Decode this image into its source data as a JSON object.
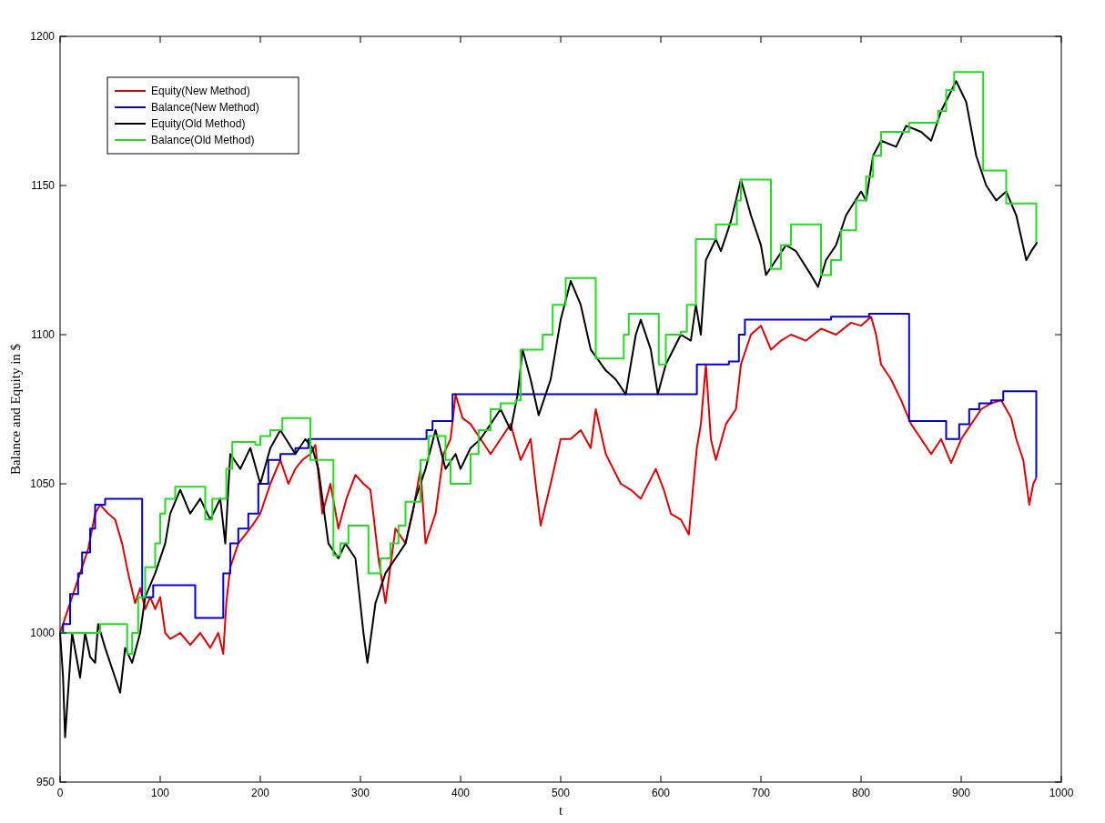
{
  "chart_data": {
    "type": "line",
    "xlabel": "t",
    "ylabel": "Balance and Equity in $",
    "xlim": [
      0,
      1000
    ],
    "ylim": [
      950,
      1200
    ],
    "xticks": [
      0,
      100,
      200,
      300,
      400,
      500,
      600,
      700,
      800,
      900,
      1000
    ],
    "yticks": [
      950,
      1000,
      1050,
      1100,
      1150,
      1200
    ],
    "grid": false,
    "legend": "top left",
    "line_style": "solid",
    "marker": "none",
    "series": [
      {
        "name": "Equity(New Method)",
        "color": "#dd0000",
        "x": [
          0,
          5,
          12,
          20,
          28,
          35,
          40,
          48,
          55,
          62,
          68,
          75,
          80,
          85,
          90,
          95,
          100,
          105,
          110,
          120,
          130,
          140,
          150,
          158,
          163,
          166,
          170,
          178,
          185,
          192,
          200,
          210,
          220,
          228,
          235,
          242,
          250,
          255,
          262,
          270,
          278,
          286,
          295,
          303,
          310,
          318,
          325,
          335,
          345,
          352,
          360,
          365,
          375,
          383,
          390,
          395,
          402,
          410,
          420,
          430,
          440,
          450,
          460,
          470,
          475,
          480,
          490,
          500,
          510,
          520,
          530,
          535,
          545,
          560,
          570,
          580,
          595,
          603,
          610,
          620,
          628,
          632,
          636,
          640,
          645,
          650,
          655,
          665,
          675,
          680,
          690,
          700,
          710,
          720,
          730,
          745,
          760,
          775,
          790,
          800,
          810,
          815,
          820,
          830,
          840,
          850,
          860,
          870,
          880,
          890,
          900,
          910,
          920,
          930,
          940,
          950,
          955,
          962,
          968,
          972,
          975
        ],
        "values": [
          1000,
          1005,
          1012,
          1020,
          1028,
          1040,
          1043,
          1040,
          1038,
          1030,
          1020,
          1010,
          1015,
          1008,
          1012,
          1008,
          1012,
          1000,
          998,
          1000,
          996,
          1000,
          995,
          1000,
          993,
          1010,
          1022,
          1030,
          1033,
          1036,
          1040,
          1050,
          1058,
          1050,
          1055,
          1058,
          1060,
          1063,
          1040,
          1050,
          1035,
          1045,
          1053,
          1050,
          1048,
          1025,
          1010,
          1035,
          1030,
          1040,
          1055,
          1030,
          1040,
          1060,
          1065,
          1080,
          1072,
          1070,
          1065,
          1060,
          1065,
          1070,
          1058,
          1065,
          1050,
          1036,
          1050,
          1065,
          1065,
          1068,
          1062,
          1075,
          1060,
          1050,
          1048,
          1045,
          1055,
          1048,
          1040,
          1038,
          1033,
          1048,
          1062,
          1070,
          1090,
          1065,
          1058,
          1070,
          1075,
          1090,
          1100,
          1103,
          1095,
          1098,
          1100,
          1098,
          1102,
          1100,
          1104,
          1103,
          1106,
          1100,
          1090,
          1085,
          1078,
          1070,
          1065,
          1060,
          1065,
          1057,
          1065,
          1070,
          1075,
          1077,
          1078,
          1072,
          1065,
          1058,
          1043,
          1050,
          1052
        ]
      },
      {
        "name": "Balance(New Method)",
        "color": "#0000cc",
        "type": "step",
        "x": [
          0,
          3,
          10,
          18,
          22,
          30,
          35,
          45,
          82,
          93,
          135,
          163,
          170,
          178,
          188,
          198,
          208,
          220,
          235,
          248,
          366,
          372,
          392,
          636,
          668,
          678,
          684,
          770,
          808,
          848,
          885,
          898,
          908,
          918,
          930,
          942,
          975
        ],
        "values": [
          1000,
          1003,
          1013,
          1020,
          1027,
          1035,
          1043,
          1045,
          1012,
          1016,
          1005,
          1020,
          1030,
          1035,
          1040,
          1050,
          1058,
          1060,
          1062,
          1065,
          1068,
          1071,
          1080,
          1090,
          1091,
          1100,
          1105,
          1106,
          1107,
          1071,
          1065,
          1070,
          1075,
          1077,
          1078,
          1081,
          1052
        ]
      },
      {
        "name": "Equity(Old Method)",
        "color": "#000000",
        "x": [
          0,
          3,
          5,
          8,
          12,
          20,
          25,
          30,
          35,
          38,
          45,
          55,
          60,
          65,
          72,
          80,
          85,
          95,
          105,
          110,
          120,
          130,
          140,
          150,
          160,
          165,
          170,
          180,
          190,
          200,
          210,
          220,
          235,
          245,
          252,
          258,
          268,
          278,
          285,
          295,
          303,
          307,
          315,
          325,
          335,
          345,
          355,
          365,
          375,
          385,
          395,
          400,
          410,
          420,
          430,
          440,
          450,
          457,
          462,
          470,
          478,
          490,
          495,
          500,
          510,
          520,
          530,
          545,
          555,
          565,
          575,
          580,
          590,
          597,
          605,
          620,
          630,
          635,
          640,
          645,
          655,
          660,
          670,
          680,
          690,
          700,
          705,
          715,
          725,
          735,
          750,
          757,
          765,
          775,
          785,
          800,
          805,
          812,
          820,
          835,
          845,
          860,
          870,
          880,
          895,
          905,
          915,
          925,
          935,
          945,
          955,
          965,
          970,
          976
        ],
        "values": [
          1000,
          985,
          965,
          980,
          1000,
          985,
          1000,
          992,
          990,
          1003,
          995,
          985,
          980,
          995,
          990,
          1000,
          1012,
          1020,
          1030,
          1040,
          1048,
          1040,
          1045,
          1038,
          1045,
          1030,
          1060,
          1055,
          1062,
          1050,
          1062,
          1068,
          1060,
          1065,
          1062,
          1055,
          1030,
          1025,
          1030,
          1025,
          1000,
          990,
          1010,
          1020,
          1025,
          1030,
          1045,
          1055,
          1068,
          1055,
          1060,
          1055,
          1062,
          1065,
          1070,
          1075,
          1068,
          1080,
          1095,
          1085,
          1073,
          1085,
          1095,
          1105,
          1118,
          1110,
          1095,
          1088,
          1085,
          1080,
          1100,
          1105,
          1095,
          1080,
          1090,
          1100,
          1098,
          1110,
          1100,
          1125,
          1132,
          1128,
          1138,
          1152,
          1140,
          1130,
          1120,
          1125,
          1130,
          1128,
          1120,
          1116,
          1125,
          1130,
          1140,
          1148,
          1145,
          1160,
          1165,
          1163,
          1170,
          1168,
          1165,
          1175,
          1185,
          1178,
          1160,
          1150,
          1145,
          1148,
          1140,
          1125,
          1128,
          1131
        ]
      },
      {
        "name": "Balance(Old Method)",
        "color": "#22dd22",
        "type": "step",
        "x": [
          0,
          40,
          67,
          72,
          78,
          85,
          95,
          100,
          105,
          115,
          145,
          152,
          166,
          172,
          195,
          200,
          210,
          222,
          250,
          273,
          280,
          288,
          308,
          320,
          330,
          338,
          345,
          360,
          368,
          385,
          390,
          410,
          418,
          430,
          440,
          455,
          460,
          482,
          492,
          505,
          535,
          563,
          568,
          598,
          605,
          620,
          626,
          635,
          655,
          676,
          680,
          710,
          720,
          730,
          760,
          770,
          780,
          795,
          805,
          812,
          820,
          848,
          877,
          885,
          893,
          922,
          945,
          975
        ],
        "values": [
          1000,
          1003,
          993,
          1000,
          1012,
          1022,
          1030,
          1040,
          1045,
          1049,
          1038,
          1045,
          1055,
          1064,
          1063,
          1066,
          1068,
          1072,
          1058,
          1026,
          1030,
          1036,
          1020,
          1025,
          1030,
          1036,
          1044,
          1058,
          1066,
          1058,
          1050,
          1060,
          1068,
          1075,
          1077,
          1078,
          1095,
          1100,
          1110,
          1119,
          1092,
          1100,
          1107,
          1090,
          1100,
          1101,
          1110,
          1132,
          1137,
          1145,
          1152,
          1122,
          1130,
          1137,
          1120,
          1125,
          1135,
          1145,
          1153,
          1160,
          1168,
          1171,
          1175,
          1182,
          1188,
          1155,
          1144,
          1131
        ]
      }
    ]
  }
}
